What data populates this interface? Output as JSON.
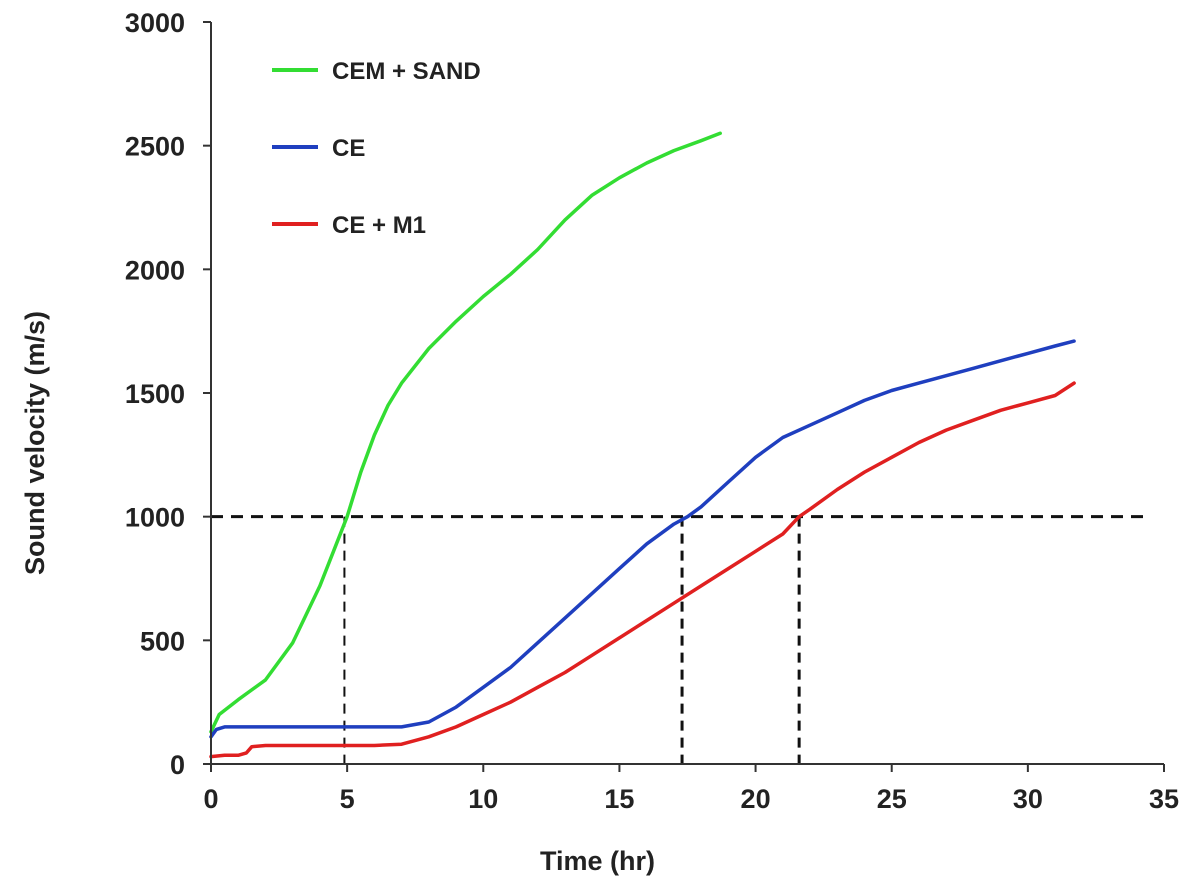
{
  "chart_data": {
    "type": "line",
    "title": "",
    "xlabel": "Time (hr)",
    "ylabel": "Sound velocity (m/s)",
    "xlim": [
      0,
      35
    ],
    "ylim": [
      0,
      3000
    ],
    "xticks": [
      0,
      5,
      10,
      15,
      20,
      25,
      30,
      35
    ],
    "yticks": [
      0,
      500,
      1000,
      1500,
      2000,
      2500,
      3000
    ],
    "grid": false,
    "legend_position": "top-left",
    "series": [
      {
        "name": "CEM + SAND",
        "color": "#33dd33",
        "x": [
          0,
          0.3,
          1,
          2,
          3,
          4,
          4.5,
          5,
          5.5,
          6,
          6.5,
          7,
          8,
          9,
          10,
          11,
          12,
          13,
          14,
          15,
          16,
          17,
          18,
          18.7
        ],
        "y": [
          130,
          200,
          260,
          340,
          490,
          720,
          860,
          1000,
          1180,
          1330,
          1450,
          1540,
          1680,
          1790,
          1890,
          1980,
          2080,
          2200,
          2300,
          2370,
          2430,
          2480,
          2520,
          2550
        ]
      },
      {
        "name": "CE",
        "color": "#1f3fbf",
        "x": [
          0,
          0.2,
          0.5,
          2,
          4,
          6,
          7,
          8,
          9,
          10,
          11,
          12,
          13,
          14,
          15,
          16,
          17,
          17.5,
          18,
          19,
          20,
          21,
          22,
          23,
          24,
          25,
          26,
          27,
          28,
          29,
          30,
          31,
          31.7
        ],
        "y": [
          110,
          140,
          150,
          150,
          150,
          150,
          150,
          170,
          230,
          310,
          390,
          490,
          590,
          690,
          790,
          890,
          970,
          1000,
          1040,
          1140,
          1240,
          1320,
          1370,
          1420,
          1470,
          1510,
          1540,
          1570,
          1600,
          1630,
          1660,
          1690,
          1710
        ]
      },
      {
        "name": "CE + M1",
        "color": "#e02020",
        "x": [
          0,
          0.5,
          1,
          1.3,
          1.5,
          2,
          4,
          6,
          7,
          8,
          9,
          10,
          11,
          12,
          13,
          14,
          15,
          16,
          17,
          18,
          19,
          20,
          21,
          21.6,
          22,
          23,
          24,
          25,
          26,
          27,
          28,
          29,
          30,
          31,
          31.7
        ],
        "y": [
          30,
          35,
          35,
          45,
          70,
          75,
          75,
          75,
          80,
          110,
          150,
          200,
          250,
          310,
          370,
          440,
          510,
          580,
          650,
          720,
          790,
          860,
          930,
          1000,
          1030,
          1110,
          1180,
          1240,
          1300,
          1350,
          1390,
          1430,
          1460,
          1490,
          1540
        ]
      }
    ],
    "reference_lines": {
      "color": "#111111",
      "horizontal_y": 1000,
      "horizontal_x_end": 34.5,
      "vertical_x": [
        4.9,
        17.3,
        21.6
      ]
    }
  }
}
